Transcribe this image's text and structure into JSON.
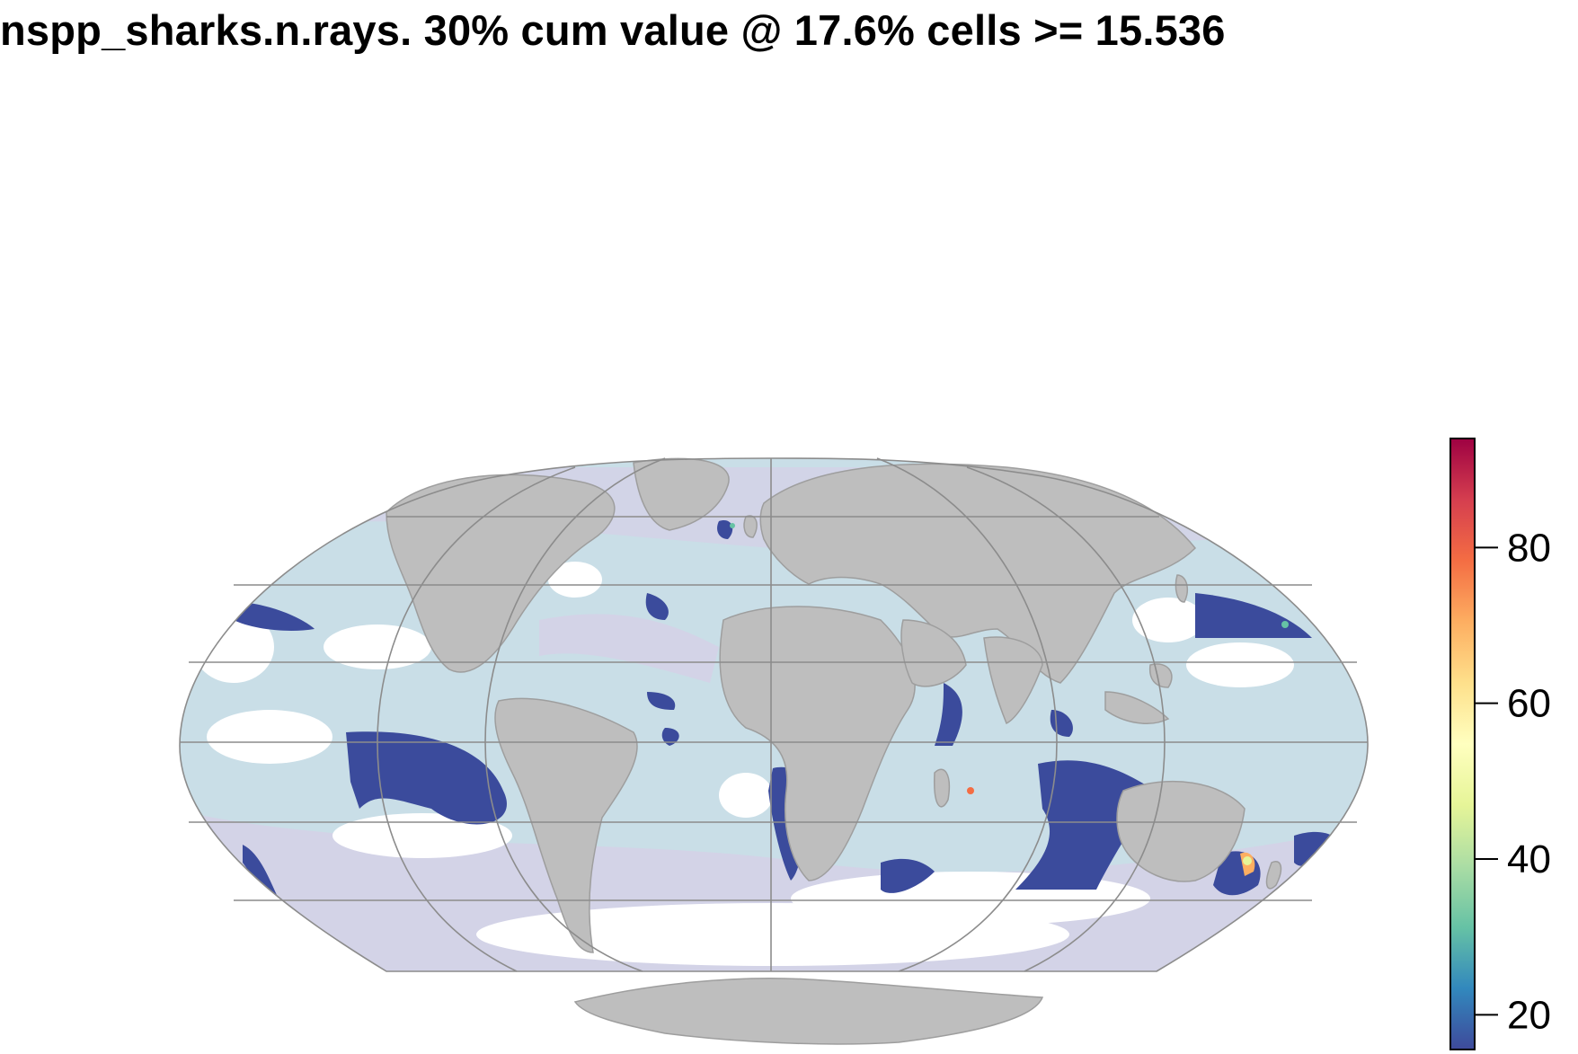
{
  "title": "nspp_sharks.n.rays. 30% cum value @ 17.6% cells >= 15.536",
  "map": {
    "projection": "Mollweide",
    "land_color": "#BEBEBE",
    "graticule_color": "#8C8C8C",
    "low_value_ocean_colors": [
      "#C8DDE6",
      "#D2D2E6"
    ],
    "highlight_color": "#3B4B9C"
  },
  "legend": {
    "ticks": [
      {
        "label": "20",
        "value": 20
      },
      {
        "label": "40",
        "value": 40
      },
      {
        "label": "60",
        "value": 60
      },
      {
        "label": "80",
        "value": 80
      }
    ],
    "range": [
      15.536,
      94
    ],
    "palette": [
      "#3E4A9B",
      "#3288BD",
      "#66C2A5",
      "#ABDDA4",
      "#E6F598",
      "#FFFFBF",
      "#FEE08B",
      "#FDAE61",
      "#F46D43",
      "#D53E4F",
      "#9E0142"
    ]
  }
}
